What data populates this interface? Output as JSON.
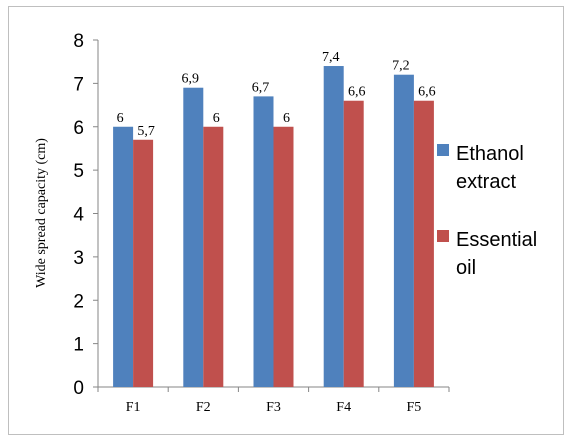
{
  "chart_data": {
    "type": "bar",
    "categories": [
      "F1",
      "F2",
      "F3",
      "F4",
      "F5"
    ],
    "series": [
      {
        "name": "Ethanol extract",
        "values": [
          6,
          6.9,
          6.7,
          7.4,
          7.2
        ],
        "labels": [
          "6",
          "6,9",
          "6,7",
          "7,4",
          "7,2"
        ],
        "color": "#4f81bd"
      },
      {
        "name": "Essential oil",
        "values": [
          5.7,
          6,
          6,
          6.6,
          6.6
        ],
        "labels": [
          "5,7",
          "6",
          "6",
          "6,6",
          "6,6"
        ],
        "color": "#c0504d"
      }
    ],
    "title": "",
    "xlabel": "",
    "ylabel": "Wide spread capacity (cm)",
    "ylim": [
      0,
      8
    ],
    "yticks": [
      0,
      1,
      2,
      3,
      4,
      5,
      6,
      7,
      8
    ],
    "grid": false,
    "legend": {
      "position": "right",
      "entries": [
        [
          "Ethanol",
          "extract"
        ],
        [
          "Essential",
          "oil"
        ]
      ]
    }
  }
}
